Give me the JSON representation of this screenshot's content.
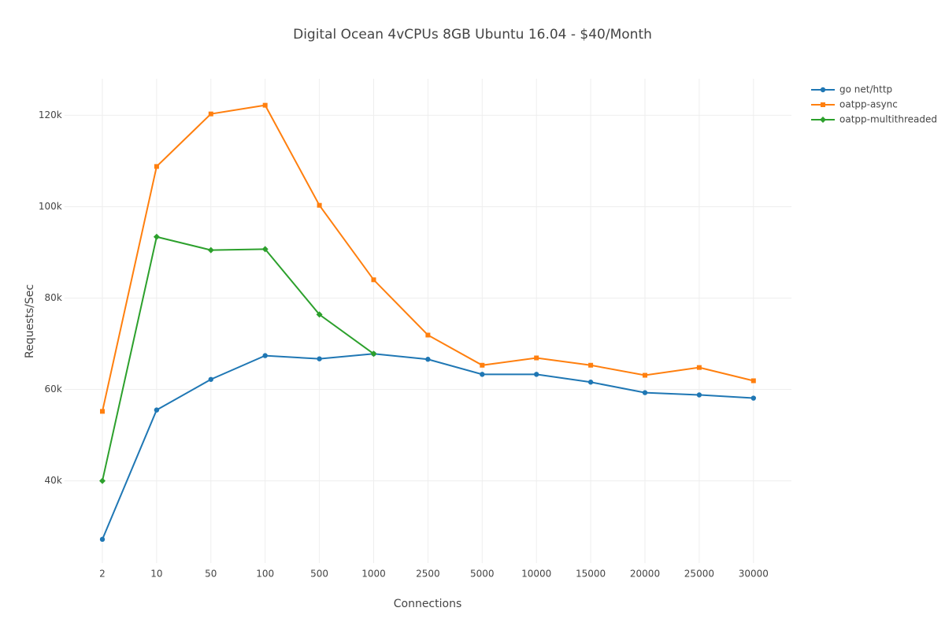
{
  "chart_data": {
    "type": "line",
    "title": "Digital Ocean 4vCPUs 8GB Ubuntu 16.04 - $40/Month",
    "x_label": "Connections",
    "y_label": "Requests/Sec",
    "categories": [
      "2",
      "10",
      "50",
      "100",
      "500",
      "1000",
      "2500",
      "5000",
      "10000",
      "15000",
      "20000",
      "25000",
      "30000"
    ],
    "series": [
      {
        "name": "go net/http",
        "color": "#1f77b4",
        "marker": "circle",
        "values": [
          27200,
          55500,
          62200,
          67400,
          66700,
          67800,
          66600,
          63300,
          63300,
          61600,
          59300,
          58800,
          58100
        ]
      },
      {
        "name": "oatpp-async",
        "color": "#ff7f0e",
        "marker": "square",
        "values": [
          55200,
          108800,
          120300,
          122200,
          100300,
          84000,
          71900,
          65300,
          66900,
          65300,
          63100,
          64800,
          61900
        ]
      },
      {
        "name": "oatpp-multithreaded",
        "color": "#2ca02c",
        "marker": "diamond",
        "values": [
          40000,
          93400,
          90500,
          90700,
          76400,
          67800,
          null,
          null,
          null,
          null,
          null,
          null,
          null
        ]
      }
    ],
    "ylim": [
      22000,
      128000
    ],
    "yticks": [
      {
        "value": 40000,
        "label": "40k"
      },
      {
        "value": 60000,
        "label": "60k"
      },
      {
        "value": 80000,
        "label": "80k"
      },
      {
        "value": 100000,
        "label": "100k"
      },
      {
        "value": 120000,
        "label": "120k"
      }
    ],
    "grid": true,
    "legend": "top-right"
  }
}
